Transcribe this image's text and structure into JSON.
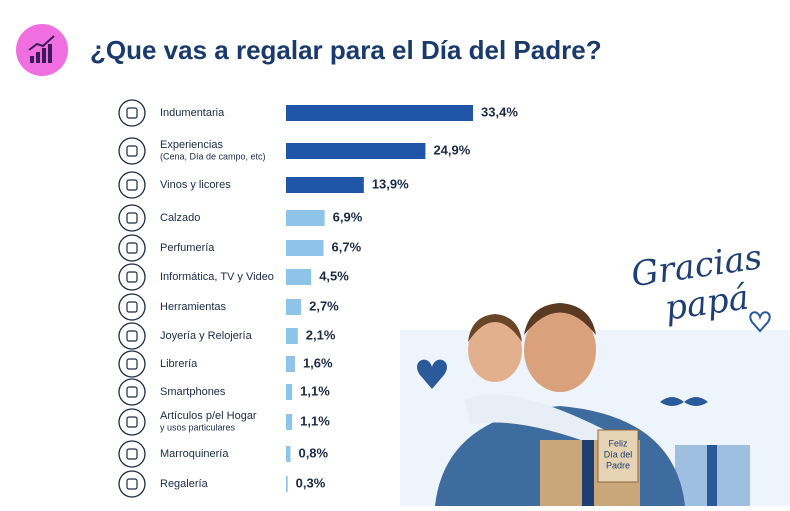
{
  "chart_data": {
    "type": "bar",
    "orientation": "horizontal",
    "title": "¿Que vas a regalar para el Día del Padre?",
    "categories": [
      [
        "Indumentaria"
      ],
      [
        "Experiencias",
        "(Cena, Día de campo, etc)"
      ],
      [
        "Vinos y licores"
      ],
      [
        "Calzado"
      ],
      [
        "Perfumería"
      ],
      [
        "Informática, TV y Video"
      ],
      [
        "Herramientas"
      ],
      [
        "Joyería y Relojería"
      ],
      [
        "Librería"
      ],
      [
        "Smartphones"
      ],
      [
        "Artículos p/el Hogar",
        "y usos particulares"
      ],
      [
        "Marroquinería"
      ],
      [
        "Regalería"
      ]
    ],
    "values": [
      33.4,
      24.9,
      13.9,
      6.9,
      6.7,
      4.5,
      2.7,
      2.1,
      1.6,
      1.1,
      1.1,
      0.8,
      0.3
    ],
    "value_labels": [
      "33,4%",
      "24,9%",
      "13,9%",
      "6,9%",
      "6,7%",
      "4,5%",
      "2,7%",
      "2,1%",
      "1,6%",
      "1,1%",
      "1,1%",
      "0,8%",
      "0,3%"
    ],
    "colors": [
      "#1f56a8",
      "#1f56a8",
      "#1f56a8",
      "#8fc3e8",
      "#8fc3e8",
      "#8fc3e8",
      "#8fc3e8",
      "#8fc3e8",
      "#8fc3e8",
      "#8fc3e8",
      "#8fc3e8",
      "#8fc3e8",
      "#8fc3e8"
    ],
    "xlim": [
      0,
      35
    ]
  },
  "illustration": {
    "caption": [
      "Gracias",
      "papá"
    ],
    "tag": [
      "Feliz",
      "Día del",
      "Padre"
    ]
  }
}
